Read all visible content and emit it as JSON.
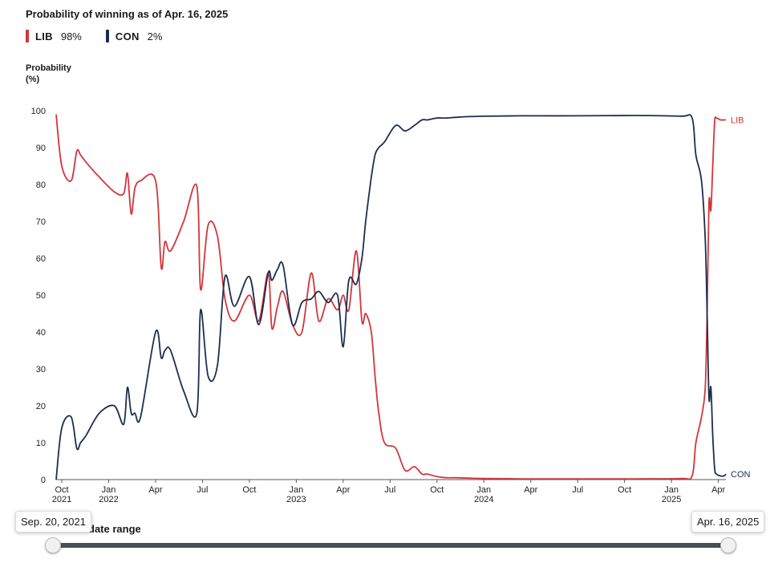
{
  "header": {
    "title": "Probability of winning as of Apr. 16, 2025",
    "y_axis_label": "Probability",
    "y_axis_unit": "(%)"
  },
  "legend": [
    {
      "party": "LIB",
      "value": "98%",
      "color": "#d2363a"
    },
    {
      "party": "CON",
      "value": "2%",
      "color": "#1c2e4f"
    }
  ],
  "slider": {
    "label": "date range",
    "start_date": "Sep. 20, 2021",
    "end_date": "Apr. 16, 2025"
  },
  "chart_data": {
    "type": "line",
    "title": "Probability of winning as of Apr. 16, 2025",
    "ylabel": "Probability (%)",
    "xlabel": "",
    "ylim": [
      0,
      100
    ],
    "yticks": [
      0,
      10,
      20,
      30,
      40,
      50,
      60,
      70,
      80,
      90,
      100
    ],
    "xlim": [
      2021.72,
      2025.29
    ],
    "xticks": [
      {
        "x": 2021.75,
        "label": "Oct",
        "year": "2021"
      },
      {
        "x": 2022.0,
        "label": "Jan",
        "year": "2022"
      },
      {
        "x": 2022.25,
        "label": "Apr",
        "year": ""
      },
      {
        "x": 2022.5,
        "label": "Jul",
        "year": ""
      },
      {
        "x": 2022.75,
        "label": "Oct",
        "year": ""
      },
      {
        "x": 2023.0,
        "label": "Jan",
        "year": "2023"
      },
      {
        "x": 2023.25,
        "label": "Apr",
        "year": ""
      },
      {
        "x": 2023.5,
        "label": "Jul",
        "year": ""
      },
      {
        "x": 2023.75,
        "label": "Oct",
        "year": ""
      },
      {
        "x": 2024.0,
        "label": "Jan",
        "year": "2024"
      },
      {
        "x": 2024.25,
        "label": "Apr",
        "year": ""
      },
      {
        "x": 2024.5,
        "label": "Jul",
        "year": ""
      },
      {
        "x": 2024.75,
        "label": "Oct",
        "year": ""
      },
      {
        "x": 2025.0,
        "label": "Jan",
        "year": "2025"
      },
      {
        "x": 2025.25,
        "label": "Apr",
        "year": ""
      }
    ],
    "series": [
      {
        "name": "LIB",
        "end_label": "LIB",
        "color": "#d2363a",
        "x": [
          2021.72,
          2021.75,
          2021.8,
          2021.83,
          2021.85,
          2021.88,
          2021.95,
          2022.03,
          2022.08,
          2022.1,
          2022.12,
          2022.14,
          2022.17,
          2022.25,
          2022.28,
          2022.3,
          2022.33,
          2022.4,
          2022.47,
          2022.49,
          2022.53,
          2022.58,
          2022.62,
          2022.67,
          2022.75,
          2022.8,
          2022.85,
          2022.87,
          2022.9,
          2022.93,
          2022.98,
          2023.03,
          2023.08,
          2023.12,
          2023.17,
          2023.22,
          2023.25,
          2023.28,
          2023.32,
          2023.35,
          2023.37,
          2023.4,
          2023.42,
          2023.44,
          2023.47,
          2023.53,
          2023.58,
          2023.63,
          2023.67,
          2023.7,
          2023.75,
          2023.8,
          2023.85,
          2023.92,
          2024.0,
          2024.2,
          2024.5,
          2024.8,
          2025.05,
          2025.11,
          2025.13,
          2025.16,
          2025.18,
          2025.19,
          2025.2,
          2025.21,
          2025.22,
          2025.23,
          2025.24,
          2025.26,
          2025.28,
          2025.29
        ],
        "y": [
          99,
          85,
          81,
          89,
          88,
          86,
          82,
          78,
          77.5,
          83,
          72,
          79,
          81,
          81,
          57.5,
          64.5,
          62,
          70,
          79.5,
          51.5,
          69,
          66,
          49,
          43,
          50,
          43,
          56,
          41,
          47,
          51,
          42,
          40,
          56,
          43,
          49,
          46,
          50,
          46,
          62,
          43,
          45,
          40,
          28,
          18,
          10,
          8.5,
          2.5,
          3.5,
          1.5,
          1.5,
          0.8,
          0.5,
          0.5,
          0.4,
          0.3,
          0.2,
          0.2,
          0.2,
          0.3,
          1,
          10,
          17,
          25,
          45,
          75,
          73,
          85,
          97,
          98,
          97.5,
          97.5,
          97.5
        ]
      },
      {
        "name": "CON",
        "end_label": "CON",
        "color": "#1c2e4f",
        "x": [
          2021.72,
          2021.75,
          2021.8,
          2021.83,
          2021.85,
          2021.88,
          2021.95,
          2022.03,
          2022.08,
          2022.1,
          2022.12,
          2022.14,
          2022.17,
          2022.25,
          2022.28,
          2022.3,
          2022.33,
          2022.4,
          2022.47,
          2022.49,
          2022.53,
          2022.58,
          2022.62,
          2022.67,
          2022.75,
          2022.8,
          2022.85,
          2022.87,
          2022.9,
          2022.93,
          2022.98,
          2023.03,
          2023.08,
          2023.12,
          2023.17,
          2023.22,
          2023.25,
          2023.28,
          2023.32,
          2023.35,
          2023.37,
          2023.4,
          2023.42,
          2023.44,
          2023.47,
          2023.53,
          2023.58,
          2023.63,
          2023.67,
          2023.7,
          2023.75,
          2023.8,
          2023.85,
          2023.92,
          2024.0,
          2024.2,
          2024.5,
          2024.8,
          2025.05,
          2025.11,
          2025.13,
          2025.16,
          2025.18,
          2025.19,
          2025.2,
          2025.21,
          2025.22,
          2025.23,
          2025.24,
          2025.26,
          2025.28,
          2025.29
        ],
        "y": [
          0,
          14,
          17,
          8.5,
          10,
          12,
          18,
          20,
          15,
          25,
          18,
          18,
          17,
          40,
          33,
          35,
          35,
          24,
          18,
          46,
          28,
          31,
          55,
          47,
          55,
          42,
          56,
          54,
          57,
          58,
          42,
          48,
          49,
          51,
          48,
          50,
          36,
          54,
          53,
          60,
          70,
          82,
          88,
          90,
          91.5,
          96,
          94.5,
          96,
          97.5,
          97.5,
          98,
          98,
          98.2,
          98.4,
          98.5,
          98.6,
          98.6,
          98.7,
          98.5,
          98,
          88,
          81,
          65,
          45,
          22,
          25,
          12,
          3,
          1.5,
          1,
          1,
          1.5
        ]
      }
    ]
  }
}
